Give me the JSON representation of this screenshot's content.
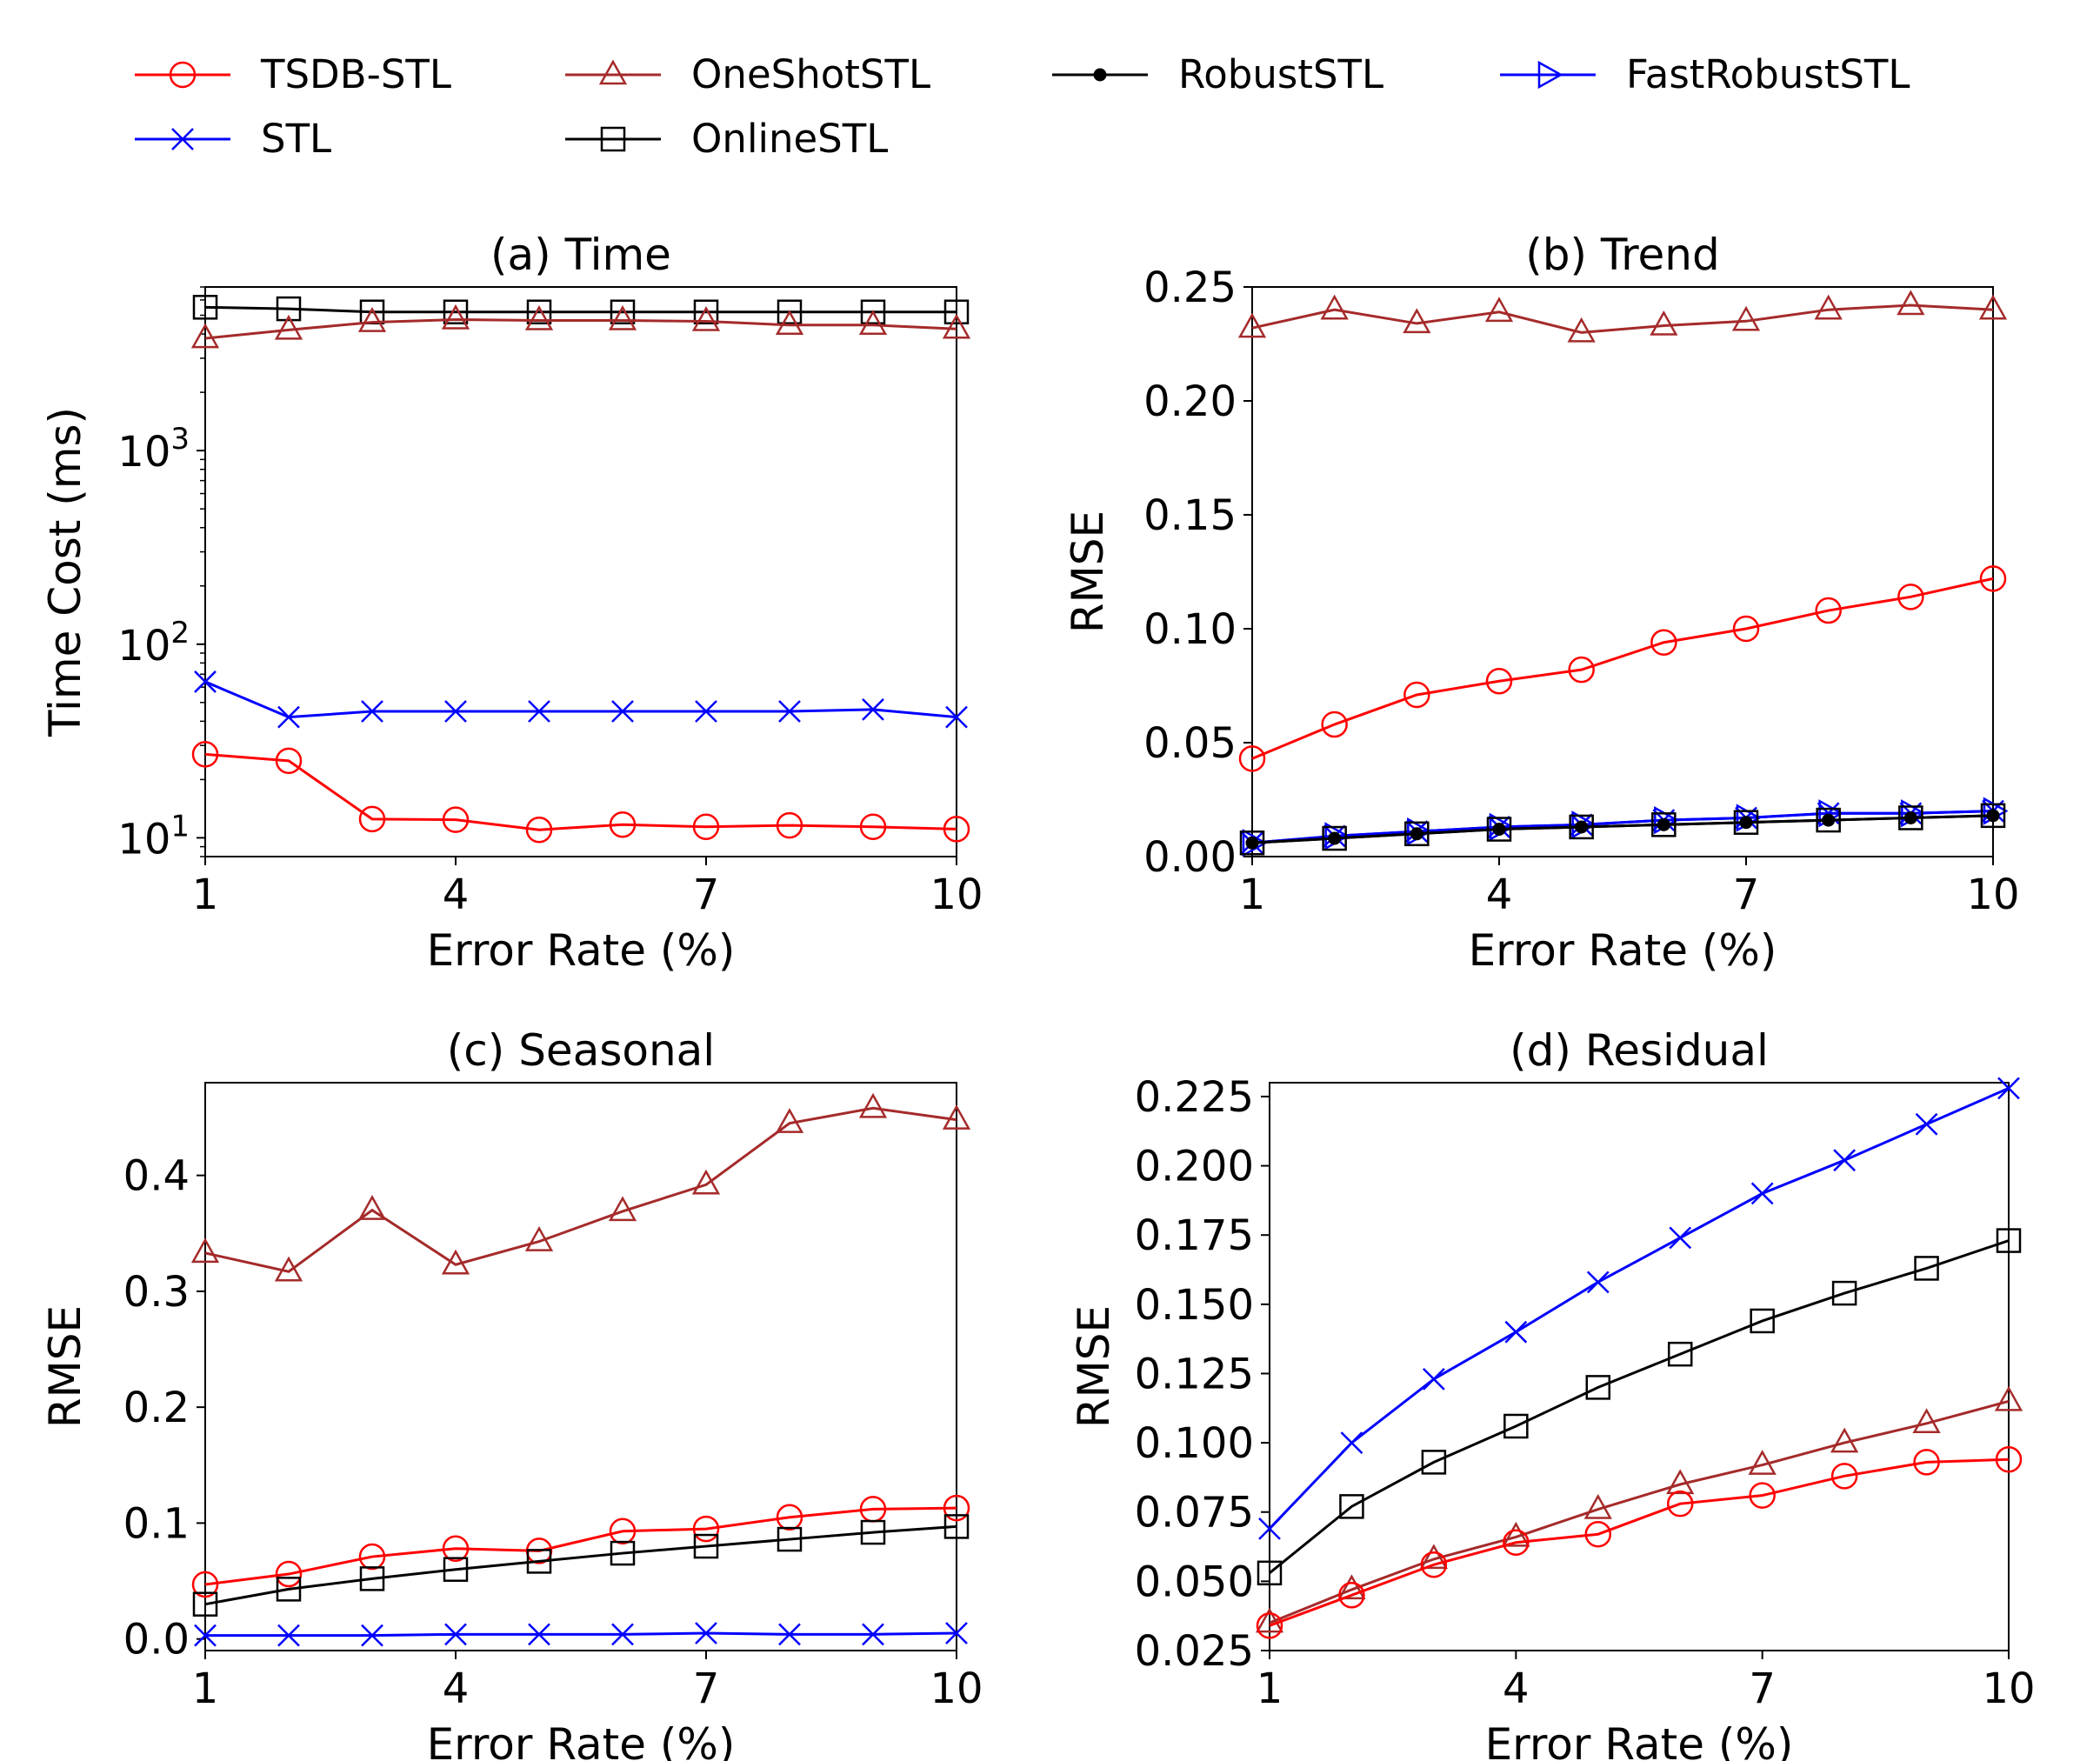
{
  "legend": {
    "placement": "top",
    "entries": [
      {
        "label": "TSDB-STL",
        "color": "#ff0000",
        "marker": "circle"
      },
      {
        "label": "OneShotSTL",
        "color": "#a52a2a",
        "marker": "triangle-up"
      },
      {
        "label": "RobustSTL",
        "color": "#000000",
        "marker": "dot"
      },
      {
        "label": "FastRobustSTL",
        "color": "#0000ff",
        "marker": "triangle-right"
      },
      {
        "label": "STL",
        "color": "#0000ff",
        "marker": "x"
      },
      {
        "label": "OnlineSTL",
        "color": "#000000",
        "marker": "square"
      }
    ]
  },
  "chart_data": [
    {
      "type": "line",
      "title": "(a) Time",
      "xlabel": "Error Rate (%)",
      "ylabel": "Time Cost (ms)",
      "yscale": "log",
      "xlim": [
        1,
        10
      ],
      "ylim": [
        8,
        7000
      ],
      "xticks": [
        1,
        4,
        7,
        10
      ],
      "yticks": [
        10,
        100,
        1000
      ],
      "ytick_labels": [
        {
          "base": "10",
          "exp": "1"
        },
        {
          "base": "10",
          "exp": "2"
        },
        {
          "base": "10",
          "exp": "3"
        }
      ],
      "grid": false,
      "x": [
        1,
        2,
        3,
        4,
        5,
        6,
        7,
        8,
        9,
        10
      ],
      "series": [
        {
          "name": "OnlineSTL",
          "values": [
            5500,
            5400,
            5200,
            5200,
            5200,
            5200,
            5200,
            5200,
            5200,
            5200
          ]
        },
        {
          "name": "OneShotSTL",
          "values": [
            3800,
            4200,
            4600,
            4750,
            4700,
            4700,
            4650,
            4450,
            4450,
            4250
          ]
        },
        {
          "name": "STL",
          "values": [
            64,
            42,
            45,
            45,
            45,
            45,
            45,
            45,
            46,
            42
          ]
        },
        {
          "name": "TSDB-STL",
          "values": [
            27,
            25,
            12.5,
            12.4,
            11,
            11.7,
            11.4,
            11.6,
            11.4,
            11.1
          ]
        }
      ]
    },
    {
      "type": "line",
      "title": "(b) Trend",
      "xlabel": "Error Rate (%)",
      "ylabel": "RMSE",
      "xlim": [
        1,
        10
      ],
      "ylim": [
        0,
        0.25
      ],
      "xticks": [
        1,
        4,
        7,
        10
      ],
      "yticks": [
        "0.00",
        "0.05",
        "0.10",
        "0.15",
        "0.20",
        "0.25"
      ],
      "grid": false,
      "x": [
        1,
        2,
        3,
        4,
        5,
        6,
        7,
        8,
        9,
        10
      ],
      "series": [
        {
          "name": "OneShotSTL",
          "values": [
            0.232,
            0.24,
            0.234,
            0.239,
            0.23,
            0.233,
            0.235,
            0.24,
            0.242,
            0.24
          ]
        },
        {
          "name": "TSDB-STL",
          "values": [
            0.043,
            0.058,
            0.071,
            0.077,
            0.082,
            0.094,
            0.1,
            0.108,
            0.114,
            0.122
          ]
        },
        {
          "name": "STL",
          "values": [
            0.006,
            0.009,
            0.011,
            0.013,
            0.014,
            0.016,
            0.017,
            0.019,
            0.019,
            0.02
          ]
        },
        {
          "name": "FastRobustSTL",
          "values": [
            0.006,
            0.009,
            0.011,
            0.013,
            0.014,
            0.016,
            0.017,
            0.019,
            0.019,
            0.02
          ]
        },
        {
          "name": "RobustSTL",
          "values": [
            0.006,
            0.008,
            0.01,
            0.012,
            0.013,
            0.014,
            0.015,
            0.016,
            0.017,
            0.018
          ]
        },
        {
          "name": "OnlineSTL",
          "values": [
            0.006,
            0.008,
            0.01,
            0.012,
            0.013,
            0.014,
            0.015,
            0.016,
            0.017,
            0.018
          ]
        }
      ]
    },
    {
      "type": "line",
      "title": "(c) Seasonal",
      "xlabel": "Error Rate (%)",
      "ylabel": "RMSE",
      "xlim": [
        1,
        10
      ],
      "ylim": [
        -0.01,
        0.48
      ],
      "xticks": [
        1,
        4,
        7,
        10
      ],
      "yticks": [
        "0.0",
        "0.1",
        "0.2",
        "0.3",
        "0.4"
      ],
      "grid": false,
      "x": [
        1,
        2,
        3,
        4,
        5,
        6,
        7,
        8,
        9,
        10
      ],
      "series": [
        {
          "name": "OneShotSTL",
          "values": [
            0.333,
            0.317,
            0.37,
            0.323,
            0.343,
            0.369,
            0.392,
            0.445,
            0.458,
            0.448
          ]
        },
        {
          "name": "TSDB-STL",
          "values": [
            0.047,
            0.056,
            0.071,
            0.078,
            0.076,
            0.093,
            0.095,
            0.105,
            0.112,
            0.113
          ]
        },
        {
          "name": "OnlineSTL",
          "values": [
            0.03,
            0.043,
            0.052,
            0.06,
            0.067,
            0.074,
            0.08,
            0.086,
            0.092,
            0.097
          ]
        },
        {
          "name": "STL",
          "values": [
            0.003,
            0.003,
            0.003,
            0.004,
            0.004,
            0.004,
            0.005,
            0.004,
            0.004,
            0.005
          ]
        }
      ]
    },
    {
      "type": "line",
      "title": "(d) Residual",
      "xlabel": "Error Rate (%)",
      "ylabel": "RMSE",
      "xlim": [
        1,
        10
      ],
      "ylim": [
        0.025,
        0.23
      ],
      "xticks": [
        1,
        4,
        7,
        10
      ],
      "yticks": [
        "0.025",
        "0.050",
        "0.075",
        "0.100",
        "0.125",
        "0.150",
        "0.175",
        "0.200",
        "0.225"
      ],
      "grid": false,
      "x": [
        1,
        2,
        3,
        4,
        5,
        6,
        7,
        8,
        9,
        10
      ],
      "series": [
        {
          "name": "STL",
          "values": [
            0.069,
            0.1,
            0.123,
            0.14,
            0.158,
            0.174,
            0.19,
            0.202,
            0.215,
            0.228
          ]
        },
        {
          "name": "OnlineSTL",
          "values": [
            0.053,
            0.077,
            0.093,
            0.106,
            0.12,
            0.132,
            0.144,
            0.154,
            0.163,
            0.173
          ]
        },
        {
          "name": "OneShotSTL",
          "values": [
            0.035,
            0.047,
            0.058,
            0.066,
            0.076,
            0.085,
            0.092,
            0.1,
            0.107,
            0.115
          ]
        },
        {
          "name": "TSDB-STL",
          "values": [
            0.034,
            0.045,
            0.056,
            0.064,
            0.067,
            0.078,
            0.081,
            0.088,
            0.093,
            0.094
          ]
        }
      ]
    }
  ]
}
